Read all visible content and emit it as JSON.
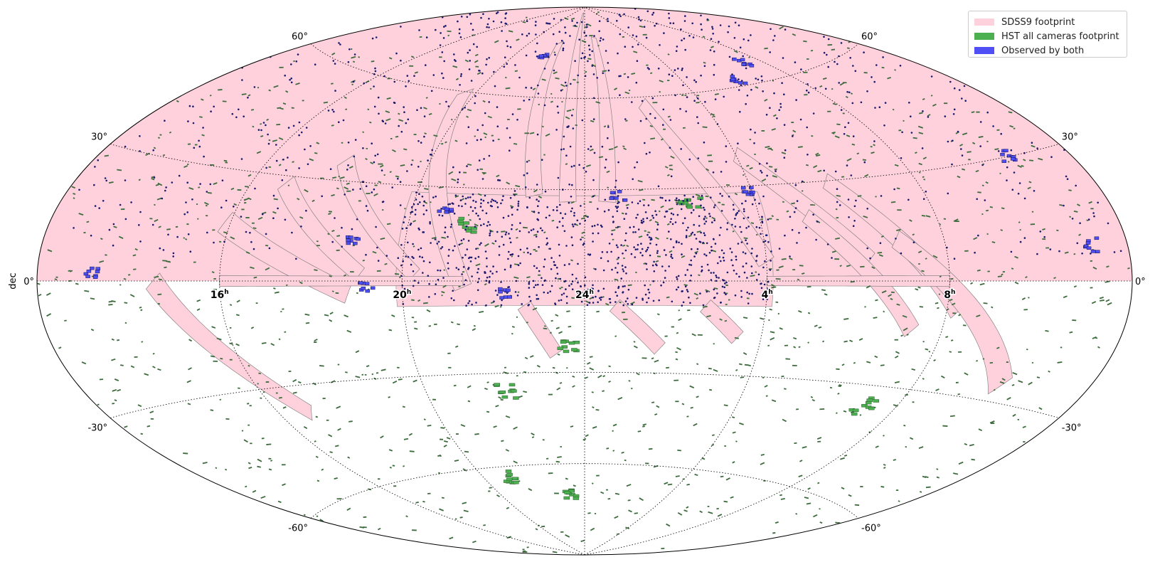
{
  "chart_data": {
    "type": "map",
    "projection": "Aitoff",
    "grid": true,
    "legend_placement": "top-right",
    "ylabel": "dec",
    "dec_ticks": [
      {
        "value": 60,
        "text": "60°"
      },
      {
        "value": 30,
        "text": "30°"
      },
      {
        "value": 0,
        "text": "0°"
      },
      {
        "value": -30,
        "text": "-30°"
      },
      {
        "value": -60,
        "text": "-60°"
      }
    ],
    "ra_ticks": [
      {
        "ra_hours": 8,
        "text": "8h"
      },
      {
        "ra_hours": 4,
        "text": "4h"
      },
      {
        "ra_hours": 0,
        "text": "24h"
      },
      {
        "ra_hours": 20,
        "text": "20h"
      },
      {
        "ra_hours": 16,
        "text": "16h"
      }
    ],
    "series": [
      {
        "name": "SDSS9 footprint",
        "color": "#ffd1dc"
      },
      {
        "name": "HST all cameras footprint",
        "color": "#4caf50"
      },
      {
        "name": "Observed by both",
        "color": "#4f4ff5"
      }
    ],
    "sdss_regions": {
      "north_cap": [
        [
          -180,
          0
        ],
        [
          -180,
          90
        ],
        [
          180,
          90
        ],
        [
          180,
          0
        ]
      ],
      "equatorial_band": [
        [
          -62,
          -8
        ],
        [
          -62,
          28
        ],
        [
          62,
          28
        ],
        [
          62,
          -8
        ]
      ],
      "stripes": [
        {
          "from": [
            -142,
            0
          ],
          "to": [
            -108,
            -38
          ],
          "width": 3
        },
        {
          "from": [
            -122,
            16
          ],
          "to": [
            -78,
            -4
          ],
          "width": 3
        },
        {
          "from": [
            -108,
            28
          ],
          "to": [
            -74,
            2
          ],
          "width": 2.5
        },
        {
          "from": [
            -92,
            36
          ],
          "to": [
            -56,
            2
          ],
          "width": 2.5
        },
        {
          "from": [
            -66,
            60
          ],
          "to": [
            -40,
            -2
          ],
          "width": 3
        },
        {
          "from": [
            -28,
            78
          ],
          "to": [
            -18,
            28
          ],
          "width": 3
        },
        {
          "from": [
            -8,
            88
          ],
          "to": [
            -6,
            26
          ],
          "width": 3
        },
        {
          "from": [
            12,
            80
          ],
          "to": [
            8,
            26
          ],
          "width": 3
        },
        {
          "from": [
            30,
            58
          ],
          "to": [
            60,
            6
          ],
          "width": 3
        },
        {
          "from": [
            60,
            40
          ],
          "to": [
            94,
            6
          ],
          "width": 3
        },
        {
          "from": [
            76,
            20
          ],
          "to": [
            110,
            -14
          ],
          "width": 2.5
        },
        {
          "from": [
            88,
            30
          ],
          "to": [
            124,
            -8
          ],
          "width": 3
        },
        {
          "from": [
            104,
            12
          ],
          "to": [
            150,
            -26
          ],
          "width": 3
        },
        {
          "from": [
            -20,
            -8
          ],
          "to": [
            -10,
            -24
          ],
          "width": 2.5
        },
        {
          "from": [
            10,
            -8
          ],
          "to": [
            26,
            -22
          ],
          "width": 2.5
        },
        {
          "from": [
            40,
            -8
          ],
          "to": [
            52,
            -18
          ],
          "width": 2.5
        },
        {
          "from": [
            -120,
            0
          ],
          "to": [
            -40,
            0
          ],
          "width": 1.5
        },
        {
          "from": [
            60,
            0
          ],
          "to": [
            120,
            0
          ],
          "width": 1.5
        }
      ]
    },
    "both_clusters": [
      {
        "ra": -36,
        "dec": 74
      },
      {
        "ra": 12,
        "dec": 28
      },
      {
        "ra": -48,
        "dec": 22
      },
      {
        "ra": -78,
        "dec": 12
      },
      {
        "ra": 90,
        "dec": 62
      },
      {
        "ra": 110,
        "dec": 66
      },
      {
        "ra": 158,
        "dec": 30
      },
      {
        "ra": 168,
        "dec": 8
      },
      {
        "ra": -162,
        "dec": 2
      },
      {
        "ra": -72,
        "dec": -2
      },
      {
        "ra": -26,
        "dec": -4
      },
      {
        "ra": 58,
        "dec": 28
      }
    ],
    "hst_clusters": [
      {
        "ra": -46,
        "dec": -64
      },
      {
        "ra": -10,
        "dec": -70
      },
      {
        "ra": 108,
        "dec": -36
      },
      {
        "ra": 38,
        "dec": 26
      },
      {
        "ra": -40,
        "dec": 18
      },
      {
        "ra": -30,
        "dec": -36
      },
      {
        "ra": -6,
        "dec": -22
      }
    ]
  }
}
